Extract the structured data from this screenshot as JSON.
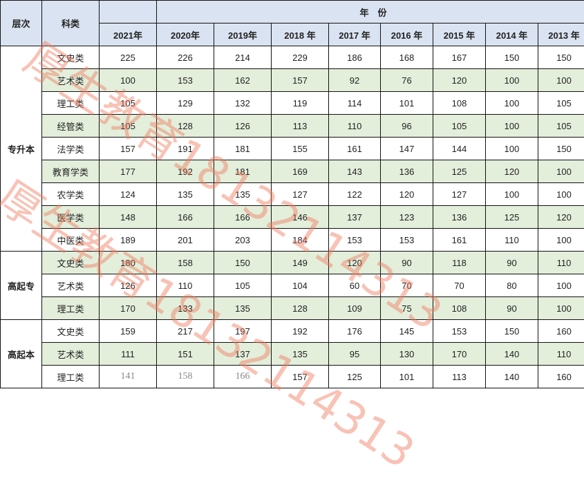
{
  "header": {
    "level": "层次",
    "category": "科类",
    "year_group": "年　份",
    "years": [
      "2021年",
      "2020年",
      "2019年",
      "2018 年",
      "2017 年",
      "2016 年",
      "2015 年",
      "2014 年",
      "2013 年"
    ]
  },
  "groups": [
    {
      "level": "专升本",
      "rows": [
        {
          "category": "文史类",
          "values": [
            "225",
            "226",
            "214",
            "229",
            "186",
            "168",
            "167",
            "150",
            "150"
          ]
        },
        {
          "category": "艺术类",
          "values": [
            "100",
            "153",
            "162",
            "157",
            "92",
            "76",
            "120",
            "100",
            "100"
          ]
        },
        {
          "category": "理工类",
          "values": [
            "105",
            "129",
            "132",
            "119",
            "114",
            "101",
            "108",
            "100",
            "105"
          ]
        },
        {
          "category": "经管类",
          "values": [
            "105",
            "128",
            "126",
            "113",
            "110",
            "96",
            "105",
            "100",
            "105"
          ]
        },
        {
          "category": "法学类",
          "values": [
            "157",
            "191",
            "181",
            "155",
            "161",
            "147",
            "144",
            "100",
            "150"
          ]
        },
        {
          "category": "教育学类",
          "values": [
            "177",
            "192",
            "181",
            "169",
            "143",
            "136",
            "125",
            "120",
            "100"
          ]
        },
        {
          "category": "农学类",
          "values": [
            "124",
            "135",
            "135",
            "127",
            "122",
            "120",
            "127",
            "100",
            "100"
          ]
        },
        {
          "category": "医学类",
          "values": [
            "148",
            "166",
            "166",
            "146",
            "137",
            "123",
            "136",
            "125",
            "120"
          ]
        },
        {
          "category": "中医类",
          "values": [
            "189",
            "201",
            "203",
            "184",
            "153",
            "153",
            "161",
            "110",
            "100"
          ]
        }
      ]
    },
    {
      "level": "高起专",
      "rows": [
        {
          "category": "文史类",
          "values": [
            "180",
            "158",
            "150",
            "149",
            "120",
            "90",
            "118",
            "90",
            "110"
          ]
        },
        {
          "category": "艺术类",
          "values": [
            "126",
            "110",
            "105",
            "104",
            "60",
            "70",
            "70",
            "80",
            "100"
          ]
        },
        {
          "category": "理工类",
          "values": [
            "170",
            "133",
            "135",
            "128",
            "109",
            "75",
            "108",
            "90",
            "100"
          ]
        }
      ]
    },
    {
      "level": "高起本",
      "rows": [
        {
          "category": "文史类",
          "values": [
            "159",
            "217",
            "197",
            "192",
            "176",
            "145",
            "153",
            "150",
            "160"
          ]
        },
        {
          "category": "艺术类",
          "values": [
            "111",
            "151",
            "137",
            "135",
            "95",
            "130",
            "170",
            "140",
            "110"
          ]
        },
        {
          "category": "理工类",
          "values": [
            "141",
            "158",
            "166",
            "157",
            "125",
            "101",
            "113",
            "140",
            "160"
          ]
        }
      ]
    }
  ],
  "watermark": "厚生教育18132114313",
  "colors": {
    "header_bg": "#dae3f1",
    "alt_row_bg": "#e3eedb",
    "watermark": "#f0785a"
  }
}
